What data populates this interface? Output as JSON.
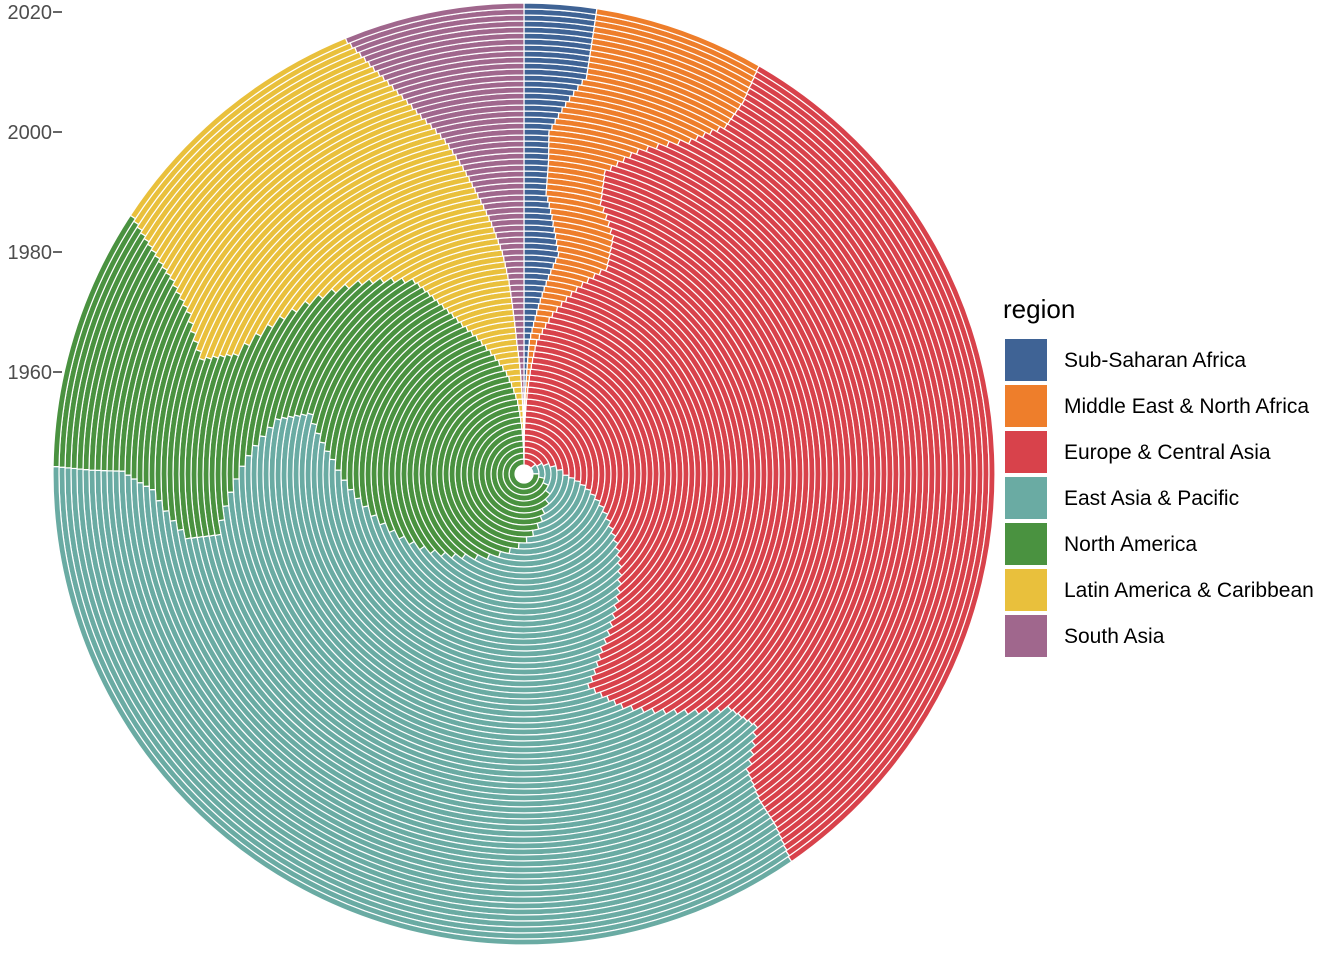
{
  "chart_data": {
    "type": "polar-stacked-bar",
    "title": "",
    "xlabel": "",
    "ylabel": "",
    "radial_axis": {
      "ticks": [
        1960,
        1980,
        2000,
        2020
      ],
      "tick_labels": [
        "1960",
        "1980",
        "2000",
        "2020"
      ],
      "range": [
        1945,
        2022
      ]
    },
    "years": [
      1945,
      2021
    ],
    "legend": {
      "title": "region",
      "position": "right"
    },
    "series": [
      {
        "name": "Sub-Saharan Africa",
        "color": "#3f6395",
        "share_keyframes": [
          [
            1945,
            0.0
          ],
          [
            1950,
            0.0
          ],
          [
            1955,
            0.002
          ],
          [
            1960,
            0.004
          ],
          [
            1965,
            0.006
          ],
          [
            1970,
            0.012
          ],
          [
            1975,
            0.018
          ],
          [
            1980,
            0.024
          ],
          [
            1985,
            0.018
          ],
          [
            1990,
            0.012
          ],
          [
            1995,
            0.012
          ],
          [
            2000,
            0.011
          ],
          [
            2005,
            0.016
          ],
          [
            2010,
            0.022
          ],
          [
            2015,
            0.022
          ],
          [
            2021,
            0.022
          ]
        ]
      },
      {
        "name": "Middle East & North Africa",
        "color": "#ee7e2b",
        "share_keyframes": [
          [
            1945,
            0.0
          ],
          [
            1955,
            0.003
          ],
          [
            1960,
            0.005
          ],
          [
            1965,
            0.008
          ],
          [
            1970,
            0.015
          ],
          [
            1975,
            0.025
          ],
          [
            1980,
            0.035
          ],
          [
            1985,
            0.038
          ],
          [
            1990,
            0.03
          ],
          [
            1995,
            0.028
          ],
          [
            2000,
            0.04
          ],
          [
            2005,
            0.05
          ],
          [
            2010,
            0.052
          ],
          [
            2015,
            0.053
          ],
          [
            2021,
            0.052
          ]
        ]
      },
      {
        "name": "Europe & Central Asia",
        "color": "#d8424b",
        "share_keyframes": [
          [
            1945,
            0.13
          ],
          [
            1950,
            0.24
          ],
          [
            1955,
            0.27
          ],
          [
            1960,
            0.3
          ],
          [
            1965,
            0.33
          ],
          [
            1970,
            0.36
          ],
          [
            1975,
            0.38
          ],
          [
            1980,
            0.38
          ],
          [
            1985,
            0.37
          ],
          [
            1990,
            0.35
          ],
          [
            1995,
            0.33
          ],
          [
            2000,
            0.31
          ],
          [
            2005,
            0.29
          ],
          [
            2010,
            0.28
          ],
          [
            2015,
            0.28
          ],
          [
            2021,
            0.285
          ]
        ]
      },
      {
        "name": "East Asia & Pacific",
        "color": "#6aaba3",
        "share_keyframes": [
          [
            1945,
            0.1
          ],
          [
            1950,
            0.16
          ],
          [
            1955,
            0.2
          ],
          [
            1960,
            0.24
          ],
          [
            1965,
            0.27
          ],
          [
            1970,
            0.3
          ],
          [
            1975,
            0.32
          ],
          [
            1980,
            0.33
          ],
          [
            1985,
            0.34
          ],
          [
            1990,
            0.33
          ],
          [
            1995,
            0.32
          ],
          [
            2000,
            0.32
          ],
          [
            2005,
            0.31
          ],
          [
            2010,
            0.31
          ],
          [
            2015,
            0.31
          ],
          [
            2021,
            0.31
          ]
        ]
      },
      {
        "name": "North America",
        "color": "#4a9240",
        "share_keyframes": [
          [
            1945,
            0.7
          ],
          [
            1950,
            0.54
          ],
          [
            1955,
            0.44
          ],
          [
            1960,
            0.34
          ],
          [
            1965,
            0.27
          ],
          [
            1970,
            0.21
          ],
          [
            1975,
            0.16
          ],
          [
            1980,
            0.12
          ],
          [
            1985,
            0.1
          ],
          [
            1990,
            0.09
          ],
          [
            1995,
            0.09
          ],
          [
            2000,
            0.08
          ],
          [
            2005,
            0.07
          ],
          [
            2010,
            0.07
          ],
          [
            2015,
            0.075
          ],
          [
            2021,
            0.08
          ]
        ]
      },
      {
        "name": "Latin America & Caribbean",
        "color": "#e9c03c",
        "share_keyframes": [
          [
            1945,
            0.0
          ],
          [
            1950,
            0.005
          ],
          [
            1955,
            0.01
          ],
          [
            1960,
            0.02
          ],
          [
            1965,
            0.035
          ],
          [
            1970,
            0.05
          ],
          [
            1975,
            0.06
          ],
          [
            1980,
            0.065
          ],
          [
            1985,
            0.09
          ],
          [
            1990,
            0.12
          ],
          [
            1995,
            0.15
          ],
          [
            2000,
            0.15
          ],
          [
            2005,
            0.12
          ],
          [
            2010,
            0.105
          ],
          [
            2015,
            0.095
          ],
          [
            2021,
            0.085
          ]
        ]
      },
      {
        "name": "South Asia",
        "color": "#a0678d",
        "share_keyframes": [
          [
            1945,
            0.0
          ],
          [
            1950,
            0.001
          ],
          [
            1955,
            0.003
          ],
          [
            1960,
            0.005
          ],
          [
            1965,
            0.008
          ],
          [
            1970,
            0.01
          ],
          [
            1975,
            0.012
          ],
          [
            1980,
            0.015
          ],
          [
            1985,
            0.02
          ],
          [
            1990,
            0.025
          ],
          [
            1995,
            0.03
          ],
          [
            2000,
            0.035
          ],
          [
            2005,
            0.04
          ],
          [
            2010,
            0.045
          ],
          [
            2015,
            0.05
          ],
          [
            2021,
            0.055
          ]
        ]
      }
    ]
  }
}
